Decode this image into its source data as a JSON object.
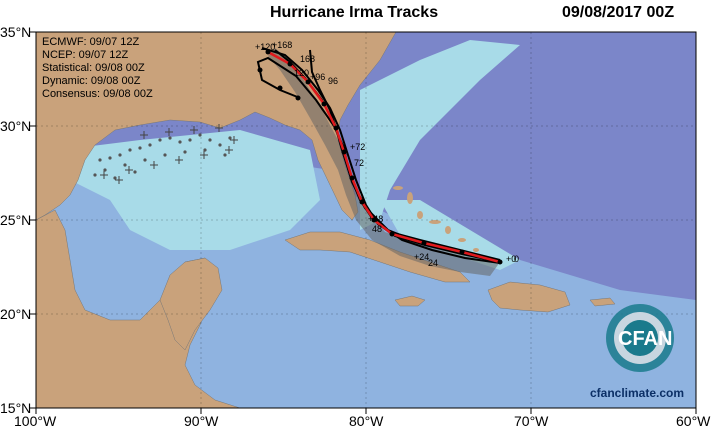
{
  "title": "Hurricane Irma Tracks",
  "datestamp": "09/08/2017 00Z",
  "legend": [
    {
      "label": "ECMWF: 09/07 12Z"
    },
    {
      "label": "NCEP: 09/07 12Z"
    },
    {
      "label": "Statistical: 09/08 00Z"
    },
    {
      "label": "Dynamic: 09/08 00Z"
    },
    {
      "label": "Consensus: 09/08 00Z"
    }
  ],
  "lat_labels": [
    "35°N",
    "30°N",
    "25°N",
    "20°N",
    "15°N"
  ],
  "lon_labels": [
    "100°W",
    "90°W",
    "80°W",
    "70°W",
    "60°W"
  ],
  "colors": {
    "ocean_deep": "#7b86c9",
    "ocean_mid": "#8fb3e0",
    "ocean_shelf": "#a8dbe8",
    "land": "#c9a27b",
    "track_consensus": "#e0191c",
    "track_models": "#000000",
    "track_spread": "#555555"
  },
  "hour_labels": [
    "+0",
    "+24",
    "+48",
    "+72",
    "+96",
    "+120",
    "+168",
    "0",
    "24",
    "48",
    "72",
    "96",
    "120",
    "168"
  ],
  "logo": {
    "text": "CFAN",
    "site": "cfanclimate.com"
  }
}
